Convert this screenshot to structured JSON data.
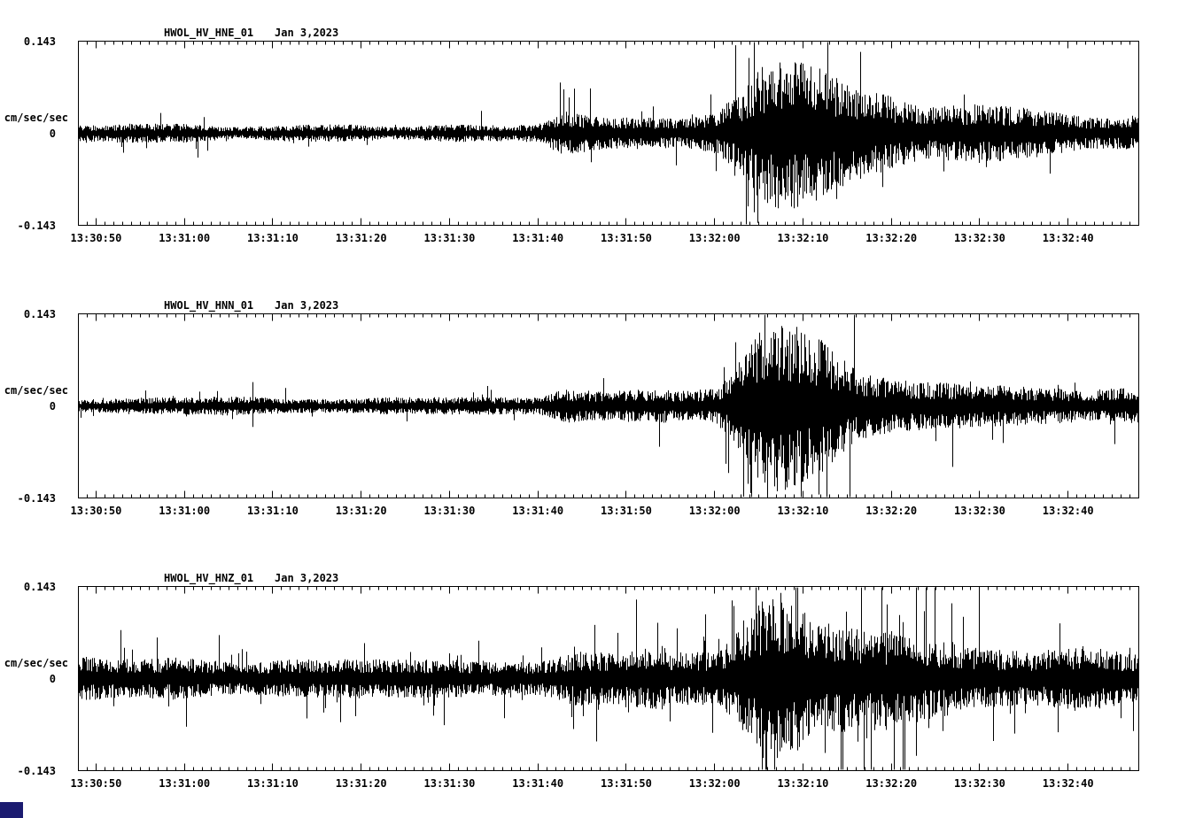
{
  "page": {
    "background": "#ffffff",
    "trace_color": "#000000",
    "corner_color": "#1b1b70"
  },
  "panels": [
    {
      "station": "HWOL_HV_HNE_01",
      "date": "Jan 3,2023",
      "y_unit": "cm/sec/sec",
      "y_top": "0.143",
      "y_zero": "0",
      "y_bottom": "-0.143"
    },
    {
      "station": "HWOL_HV_HNN_01",
      "date": "Jan 3,2023",
      "y_unit": "cm/sec/sec",
      "y_top": "0.143",
      "y_zero": "0",
      "y_bottom": "-0.143"
    },
    {
      "station": "HWOL_HV_HNZ_01",
      "date": "Jan 3,2023",
      "y_unit": "cm/sec/sec",
      "y_top": "0.143",
      "y_zero": "0",
      "y_bottom": "-0.143"
    }
  ],
  "x_tick_labels": [
    "13:30:50",
    "13:31:00",
    "13:31:10",
    "13:31:20",
    "13:31:30",
    "13:31:40",
    "13:31:50",
    "13:32:00",
    "13:32:10",
    "13:32:20",
    "13:32:30",
    "13:32:40"
  ],
  "chart_data": [
    {
      "type": "line",
      "title": "HWOL_HV_HNE_01",
      "subtitle": "Jan 3,2023",
      "ylabel": "cm/sec/sec",
      "ylim": [
        -0.143,
        0.143
      ],
      "x_range": [
        "13:30:48",
        "13:32:48"
      ],
      "x_ticks": [
        "13:30:50",
        "13:31:00",
        "13:31:10",
        "13:31:20",
        "13:31:30",
        "13:31:40",
        "13:31:50",
        "13:32:00",
        "13:32:10",
        "13:32:20",
        "13:32:30",
        "13:32:40"
      ],
      "grid": false,
      "legend": false,
      "waveform": "seismic acceleration trace; quiet background noise, small arrival near 13:31:43, main event burst peaking near 13:32:07, slow coda decay",
      "envelope_points": [
        [
          "13:30:48",
          0.013
        ],
        [
          "13:31:05",
          0.012
        ],
        [
          "13:31:25",
          0.011
        ],
        [
          "13:31:40",
          0.013
        ],
        [
          "13:31:43",
          0.032
        ],
        [
          "13:31:49",
          0.027
        ],
        [
          "13:31:56",
          0.02
        ],
        [
          "13:32:00",
          0.03
        ],
        [
          "13:32:03",
          0.065
        ],
        [
          "13:32:05",
          0.11
        ],
        [
          "13:32:07",
          0.135
        ],
        [
          "13:32:10",
          0.115
        ],
        [
          "13:32:13",
          0.09
        ],
        [
          "13:32:16",
          0.065
        ],
        [
          "13:32:21",
          0.052
        ],
        [
          "13:32:28",
          0.042
        ],
        [
          "13:32:36",
          0.033
        ],
        [
          "13:32:48",
          0.027
        ]
      ]
    },
    {
      "type": "line",
      "title": "HWOL_HV_HNN_01",
      "subtitle": "Jan 3,2023",
      "ylabel": "cm/sec/sec",
      "ylim": [
        -0.143,
        0.143
      ],
      "x_range": [
        "13:30:48",
        "13:32:48"
      ],
      "x_ticks": [
        "13:30:50",
        "13:31:00",
        "13:31:10",
        "13:31:20",
        "13:31:30",
        "13:31:40",
        "13:31:50",
        "13:32:00",
        "13:32:10",
        "13:32:20",
        "13:32:30",
        "13:32:40"
      ],
      "grid": false,
      "legend": false,
      "waveform": "seismic acceleration trace; quiet background noise, small arrival near 13:31:43, main event burst peaking near 13:32:06, slow coda decay",
      "envelope_points": [
        [
          "13:30:48",
          0.012
        ],
        [
          "13:31:05",
          0.013
        ],
        [
          "13:31:25",
          0.012
        ],
        [
          "13:31:40",
          0.014
        ],
        [
          "13:31:43",
          0.03
        ],
        [
          "13:31:50",
          0.026
        ],
        [
          "13:31:56",
          0.021
        ],
        [
          "13:32:00",
          0.028
        ],
        [
          "13:32:03",
          0.07
        ],
        [
          "13:32:06",
          0.125
        ],
        [
          "13:32:09",
          0.11
        ],
        [
          "13:32:12",
          0.095
        ],
        [
          "13:32:16",
          0.062
        ],
        [
          "13:32:21",
          0.05
        ],
        [
          "13:32:28",
          0.04
        ],
        [
          "13:32:36",
          0.031
        ],
        [
          "13:32:48",
          0.026
        ]
      ]
    },
    {
      "type": "line",
      "title": "HWOL_HV_HNZ_01",
      "subtitle": "Jan 3,2023",
      "ylabel": "cm/sec/sec",
      "ylim": [
        -0.143,
        0.143
      ],
      "x_range": [
        "13:30:48",
        "13:32:48"
      ],
      "x_ticks": [
        "13:30:50",
        "13:31:00",
        "13:31:10",
        "13:31:20",
        "13:31:30",
        "13:31:40",
        "13:31:50",
        "13:32:00",
        "13:32:10",
        "13:32:20",
        "13:32:30",
        "13:32:40"
      ],
      "grid": false,
      "legend": false,
      "waveform": "vertical-component trace; noticeably noisier background than horizontals, arrival near 13:31:44, main burst peaking near 13:32:08 with tall isolated spikes, broad coda",
      "envelope_points": [
        [
          "13:30:48",
          0.03
        ],
        [
          "13:31:05",
          0.028
        ],
        [
          "13:31:25",
          0.027
        ],
        [
          "13:31:40",
          0.03
        ],
        [
          "13:31:44",
          0.05
        ],
        [
          "13:31:50",
          0.045
        ],
        [
          "13:31:56",
          0.04
        ],
        [
          "13:32:00",
          0.05
        ],
        [
          "13:32:03",
          0.08
        ],
        [
          "13:32:06",
          0.12
        ],
        [
          "13:32:08",
          0.13
        ],
        [
          "13:32:11",
          0.11
        ],
        [
          "13:32:14",
          0.1
        ],
        [
          "13:32:18",
          0.075
        ],
        [
          "13:32:24",
          0.06
        ],
        [
          "13:32:32",
          0.05
        ],
        [
          "13:32:40",
          0.046
        ],
        [
          "13:32:48",
          0.04
        ]
      ]
    }
  ]
}
